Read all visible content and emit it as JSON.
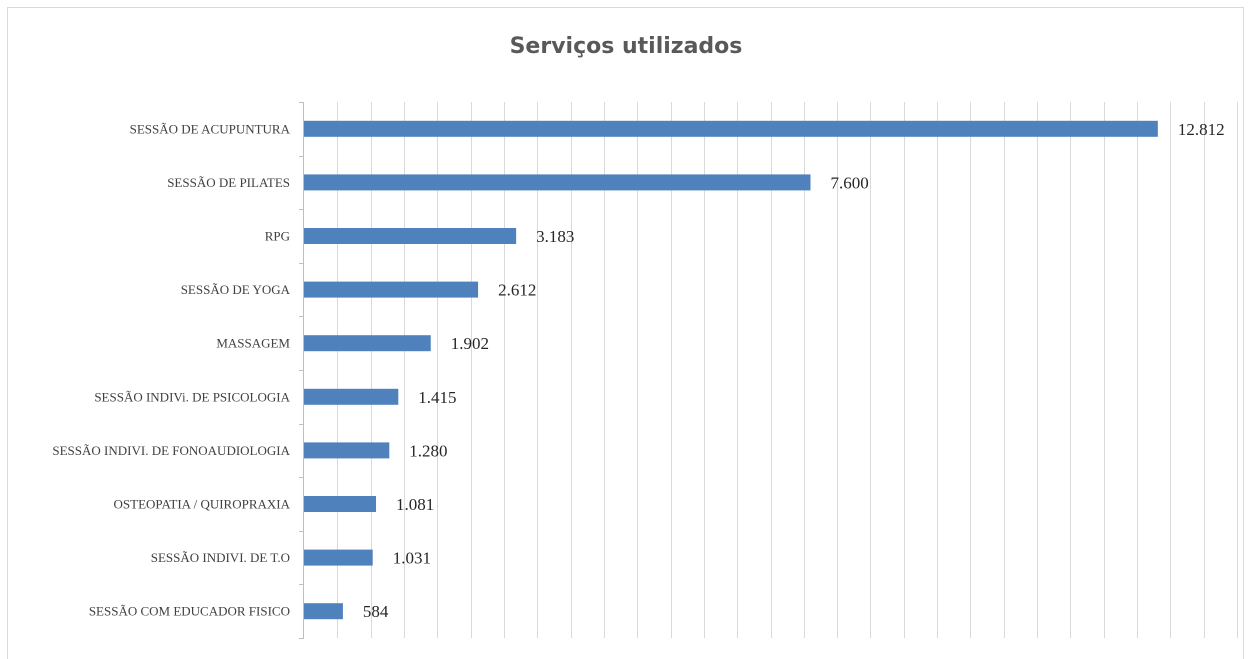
{
  "chart_data": {
    "type": "bar",
    "orientation": "horizontal",
    "title": "Serviços utilizados",
    "xlabel": "",
    "ylabel": "",
    "categories": [
      "SESSÃO DE ACUPUNTURA",
      "SESSÃO DE PILATES",
      "RPG",
      "SESSÃO DE YOGA",
      "MASSAGEM",
      "SESSÃO INDIVi. DE PSICOLOGIA",
      "SESSÃO INDIVI. DE FONOAUDIOLOGIA",
      "OSTEOPATIA / QUIROPRAXIA",
      "SESSÃO INDIVI. DE T.O",
      "SESSÃO COM EDUCADOR FISICO"
    ],
    "values": [
      12812,
      7600,
      3183,
      2612,
      1902,
      1415,
      1280,
      1081,
      1031,
      584
    ],
    "value_labels": [
      "12.812",
      "7.600",
      "3.183",
      "2.612",
      "1.902",
      "1.415",
      "1.280",
      "1.081",
      "1.031",
      "584"
    ],
    "xlim": [
      0,
      14000
    ],
    "grid": "vertical",
    "legend": "none",
    "bar_color": "#4F81BD",
    "grid_color": "#D9D9D9"
  }
}
